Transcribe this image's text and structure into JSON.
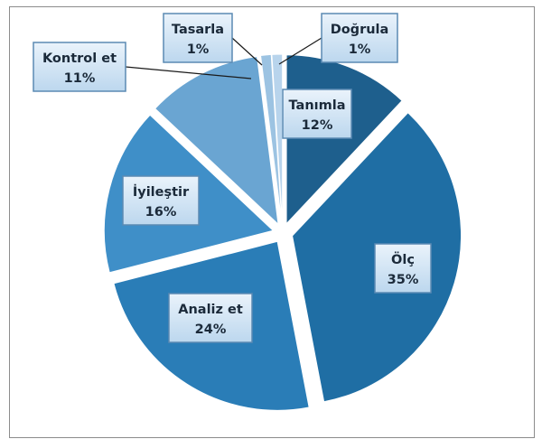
{
  "chart_data": {
    "type": "pie",
    "exploded": true,
    "slices": [
      {
        "label": "Tanımla",
        "value": 12,
        "value_label": "12%",
        "color": "#1e5f8d"
      },
      {
        "label": "Ölç",
        "value": 35,
        "value_label": "35%",
        "color": "#1f6ea4"
      },
      {
        "label": "Analiz et",
        "value": 24,
        "value_label": "24%",
        "color": "#2a7db7"
      },
      {
        "label": "İyileştir",
        "value": 16,
        "value_label": "16%",
        "color": "#3f8fc8"
      },
      {
        "label": "Kontrol et",
        "value": 11,
        "value_label": "11%",
        "color": "#6aa5d2"
      },
      {
        "label": "Tasarla",
        "value": 1,
        "value_label": "1%",
        "color": "#9cc3e2"
      },
      {
        "label": "Doğrula",
        "value": 1,
        "value_label": "1%",
        "color": "#b8d4ec"
      }
    ],
    "label_style": {
      "fill": "#cfe3f5",
      "border": "#5b8ab3"
    }
  }
}
